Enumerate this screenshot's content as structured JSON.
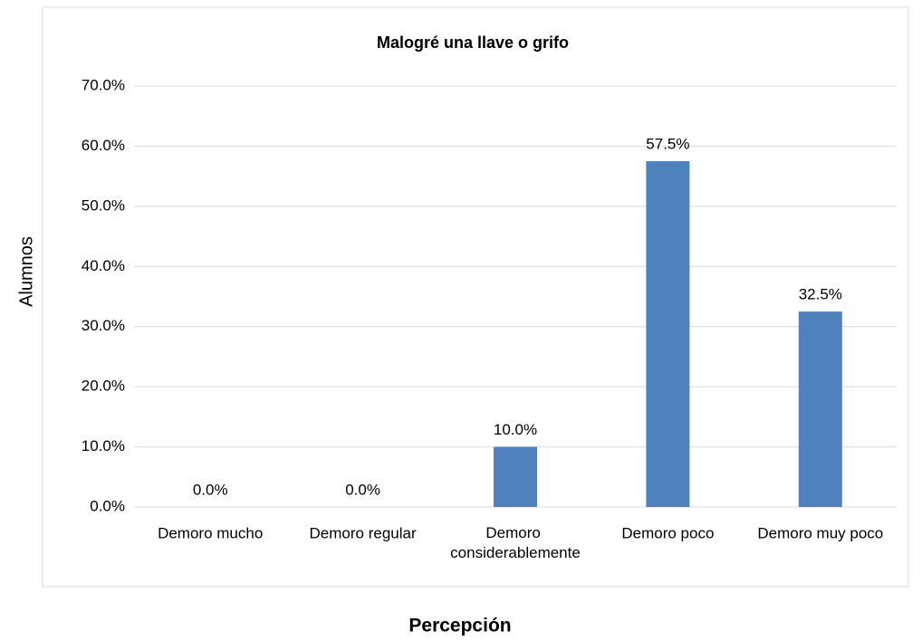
{
  "chart_data": {
    "type": "bar",
    "title": "Malogré una llave o grifo",
    "x_label": "Percepción",
    "y_label": "Alumnos",
    "categories": [
      "Demoro mucho",
      "Demoro regular",
      "Demoro considerablemente",
      "Demoro poco",
      "Demoro muy poco"
    ],
    "values": [
      0,
      0,
      10,
      57.5,
      32.5
    ],
    "value_labels": [
      "0.0%",
      "0.0%",
      "10.0%",
      "57.5%",
      "32.5%"
    ],
    "color": "#4f81bd",
    "ylim": [
      0,
      70
    ],
    "yticks": [
      {
        "value": 0,
        "label": "0.0%"
      },
      {
        "value": 10,
        "label": "10.0%"
      },
      {
        "value": 20,
        "label": "20.0%"
      },
      {
        "value": 30,
        "label": "30.0%"
      },
      {
        "value": 40,
        "label": "40.0%"
      },
      {
        "value": 50,
        "label": "50.0%"
      },
      {
        "value": 60,
        "label": "60.0%"
      },
      {
        "value": 70,
        "label": "70.0%"
      }
    ],
    "grid": true
  }
}
